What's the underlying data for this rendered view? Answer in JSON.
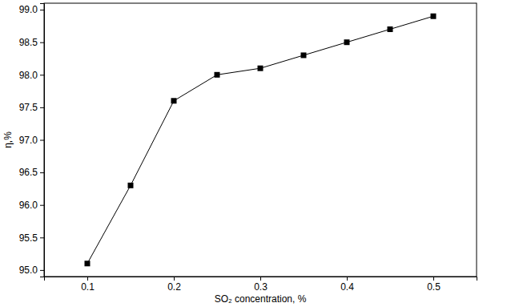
{
  "chart_data": {
    "type": "line",
    "x_label": "SO₂ concentration, %",
    "y_label": "η,%",
    "x": [
      0.1,
      0.15,
      0.2,
      0.25,
      0.3,
      0.35,
      0.4,
      0.45,
      0.5
    ],
    "values": [
      95.1,
      96.3,
      97.6,
      98.0,
      98.1,
      98.3,
      98.5,
      98.7,
      98.9
    ],
    "color": "#000000",
    "marker": "square",
    "line_style": "solid",
    "xlim": [
      0.05,
      0.55
    ],
    "xticks": [
      0.1,
      0.2,
      0.3,
      0.4,
      0.5
    ],
    "ylim": [
      94.9,
      99.1
    ],
    "yticks": [
      {
        "value": 95,
        "label": "95.0"
      },
      {
        "value": 95.5,
        "label": "95.5"
      },
      {
        "value": 96,
        "label": "96.0"
      },
      {
        "value": 96.5,
        "label": "96.5"
      },
      {
        "value": 97,
        "label": "97.0"
      },
      {
        "value": 97.5,
        "label": "97.5"
      },
      {
        "value": 98,
        "label": "98.0"
      },
      {
        "value": 98.5,
        "label": "98.5"
      },
      {
        "value": 99,
        "label": "99.0"
      }
    ],
    "grid": false
  }
}
